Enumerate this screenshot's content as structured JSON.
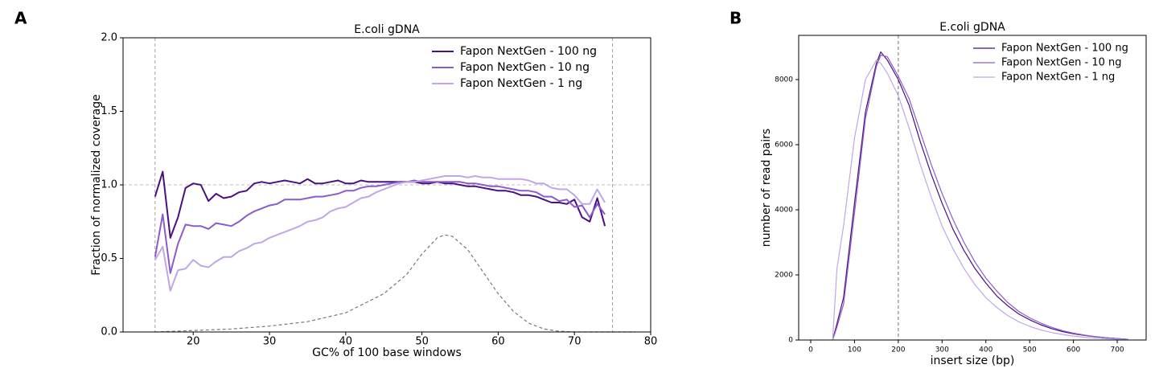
{
  "panel_labels": [
    "A",
    "B"
  ],
  "chart_data": [
    {
      "type": "line",
      "title": "E.coli gDNA",
      "xlabel": "GC% of 100 base windows",
      "ylabel": "Fraction of normalized coverage",
      "xlim": [
        10.8,
        80
      ],
      "ylim": [
        0,
        2
      ],
      "xticks": [
        20,
        30,
        40,
        50,
        60,
        70,
        80
      ],
      "yticks": [
        {
          "value": 0,
          "label": "0.0"
        },
        0.5,
        {
          "value": 1,
          "label": "1.0"
        },
        1.5,
        {
          "value": 2,
          "label": "2.0"
        }
      ],
      "vlines": [
        15,
        75
      ],
      "hlines": [
        1
      ],
      "legend": "upper right",
      "x": [
        15,
        16,
        17,
        18,
        19,
        20,
        21,
        22,
        23,
        24,
        25,
        26,
        27,
        28,
        29,
        30,
        31,
        32,
        33,
        34,
        35,
        36,
        37,
        38,
        39,
        40,
        41,
        42,
        43,
        44,
        45,
        46,
        47,
        48,
        49,
        50,
        51,
        52,
        53,
        54,
        55,
        56,
        57,
        58,
        59,
        60,
        61,
        62,
        63,
        64,
        65,
        66,
        67,
        68,
        69,
        70,
        71,
        72,
        73,
        74
      ],
      "series": [
        {
          "name": "Fapon NextGen - 100 ng",
          "color": "#4a0f80",
          "values": [
            0.92,
            1.09,
            0.64,
            0.78,
            0.98,
            1.01,
            1.0,
            0.89,
            0.94,
            0.91,
            0.92,
            0.95,
            0.96,
            1.01,
            1.02,
            1.01,
            1.02,
            1.03,
            1.02,
            1.01,
            1.04,
            1.01,
            1.01,
            1.02,
            1.03,
            1.01,
            1.01,
            1.03,
            1.02,
            1.02,
            1.02,
            1.02,
            1.02,
            1.02,
            1.02,
            1.01,
            1.01,
            1.02,
            1.01,
            1.01,
            1.0,
            0.99,
            0.99,
            0.98,
            0.97,
            0.96,
            0.96,
            0.95,
            0.93,
            0.93,
            0.92,
            0.9,
            0.88,
            0.88,
            0.87,
            0.9,
            0.78,
            0.75,
            0.91,
            0.72
          ]
        },
        {
          "name": "Fapon NextGen - 10 ng",
          "color": "#8a5cc9",
          "values": [
            0.51,
            0.8,
            0.4,
            0.6,
            0.73,
            0.72,
            0.72,
            0.7,
            0.74,
            0.73,
            0.72,
            0.75,
            0.79,
            0.82,
            0.84,
            0.86,
            0.87,
            0.9,
            0.9,
            0.9,
            0.91,
            0.92,
            0.92,
            0.93,
            0.94,
            0.96,
            0.96,
            0.98,
            0.99,
            0.99,
            1.0,
            1.01,
            1.02,
            1.02,
            1.03,
            1.02,
            1.02,
            1.02,
            1.02,
            1.02,
            1.02,
            1.01,
            1.01,
            1.0,
            0.99,
            0.99,
            0.98,
            0.97,
            0.96,
            0.96,
            0.95,
            0.92,
            0.92,
            0.89,
            0.9,
            0.85,
            0.86,
            0.78,
            0.87,
            0.8
          ]
        },
        {
          "name": "Fapon NextGen - 1 ng",
          "color": "#bfa6e6",
          "values": [
            0.49,
            0.58,
            0.28,
            0.42,
            0.43,
            0.49,
            0.45,
            0.44,
            0.48,
            0.51,
            0.51,
            0.55,
            0.57,
            0.6,
            0.61,
            0.64,
            0.66,
            0.68,
            0.7,
            0.72,
            0.75,
            0.76,
            0.78,
            0.82,
            0.84,
            0.85,
            0.88,
            0.91,
            0.92,
            0.95,
            0.97,
            0.99,
            1.01,
            1.02,
            1.02,
            1.03,
            1.04,
            1.05,
            1.06,
            1.06,
            1.06,
            1.05,
            1.06,
            1.05,
            1.05,
            1.04,
            1.04,
            1.04,
            1.04,
            1.03,
            1.01,
            1.01,
            0.98,
            0.97,
            0.97,
            0.93,
            0.87,
            0.87,
            0.97,
            0.88
          ]
        },
        {
          "color": "#777777",
          "dashed": true,
          "x": [
            15,
            20,
            25,
            30,
            35,
            40,
            45,
            48,
            50,
            52,
            53,
            54,
            56,
            58,
            60,
            62,
            64,
            66,
            68,
            70,
            75,
            78
          ],
          "values": [
            0,
            0.01,
            0.02,
            0.04,
            0.07,
            0.13,
            0.26,
            0.39,
            0.53,
            0.64,
            0.66,
            0.65,
            0.56,
            0.41,
            0.26,
            0.14,
            0.06,
            0.02,
            0.005,
            0,
            0,
            0
          ]
        }
      ]
    },
    {
      "type": "line",
      "title": "E.coli gDNA",
      "xlabel": "insert size (bp)",
      "ylabel": "number of read pairs",
      "xlim": [
        -27.5,
        766
      ],
      "ylim": [
        0,
        9358
      ],
      "xticks": [
        0,
        100,
        200,
        300,
        400,
        500,
        600,
        700
      ],
      "yticks": [
        0,
        2000,
        4000,
        6000,
        8000
      ],
      "vlines": [
        200
      ],
      "hlines": [],
      "legend": "upper right",
      "x": [
        50,
        60,
        75,
        100,
        125,
        150,
        160,
        175,
        200,
        225,
        250,
        275,
        300,
        325,
        350,
        375,
        400,
        425,
        450,
        475,
        500,
        525,
        550,
        575,
        600,
        625,
        650,
        675,
        700,
        725
      ],
      "series": [
        {
          "name": "Fapon NextGen - 100 ng",
          "color": "#4a0f80",
          "values": [
            0,
            500,
            1300,
            4200,
            7000,
            8500,
            8850,
            8600,
            8000,
            7200,
            6100,
            5100,
            4200,
            3400,
            2750,
            2200,
            1750,
            1350,
            1050,
            800,
            620,
            470,
            350,
            260,
            190,
            140,
            100,
            70,
            45,
            20
          ]
        },
        {
          "name": "Fapon NextGen - 10 ng",
          "color": "#8a5cc9",
          "values": [
            0,
            400,
            1100,
            3900,
            6800,
            8400,
            8750,
            8700,
            8100,
            7400,
            6400,
            5400,
            4500,
            3700,
            3000,
            2400,
            1900,
            1500,
            1150,
            880,
            680,
            520,
            390,
            290,
            210,
            150,
            105,
            70,
            45,
            20
          ]
        },
        {
          "name": "Fapon NextGen - 1 ng",
          "color": "#bfa6e6",
          "values": [
            0,
            2200,
            3500,
            6200,
            8000,
            8600,
            8500,
            8200,
            7500,
            6500,
            5400,
            4400,
            3500,
            2800,
            2200,
            1700,
            1300,
            1000,
            750,
            560,
            420,
            310,
            230,
            170,
            120,
            85,
            60,
            40,
            25,
            10
          ]
        }
      ]
    }
  ]
}
